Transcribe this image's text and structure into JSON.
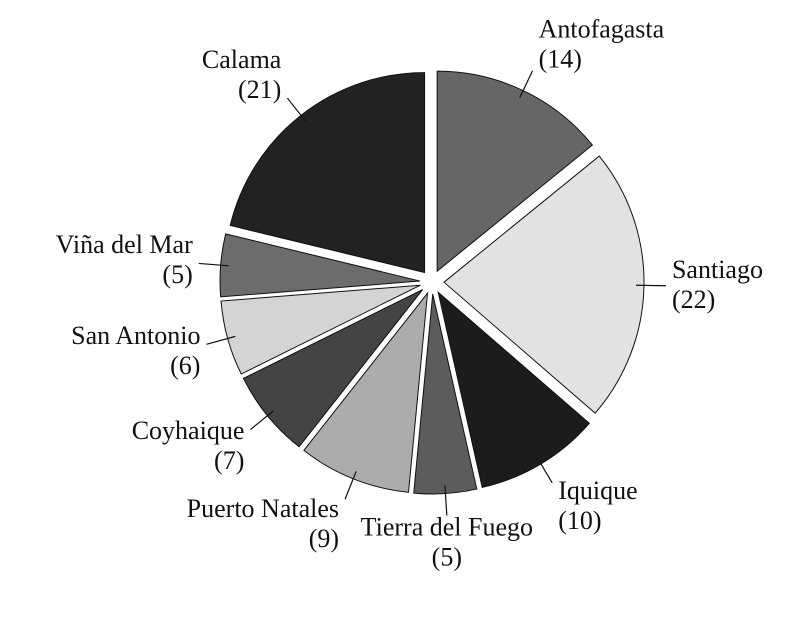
{
  "chart_data": {
    "type": "pie",
    "categories": [
      "Antofagasta",
      "Santiago",
      "Iquique",
      "Tierra del Fuego",
      "Puerto Natales",
      "Coyhaique",
      "San Antonio",
      "Viña del Mar",
      "Calama"
    ],
    "values": [
      14,
      22,
      10,
      5,
      9,
      7,
      6,
      5,
      21
    ],
    "value_labels": [
      "(14)",
      "(22)",
      "(10)",
      "(5)",
      "(9)",
      "(7)",
      "(6)",
      "(5)",
      "(21)"
    ],
    "colors": [
      "#666666",
      "#e2e2e2",
      "#1c1c1c",
      "#5c5c5c",
      "#acacac",
      "#444444",
      "#d4d4d4",
      "#6c6c6c",
      "#222222"
    ]
  }
}
